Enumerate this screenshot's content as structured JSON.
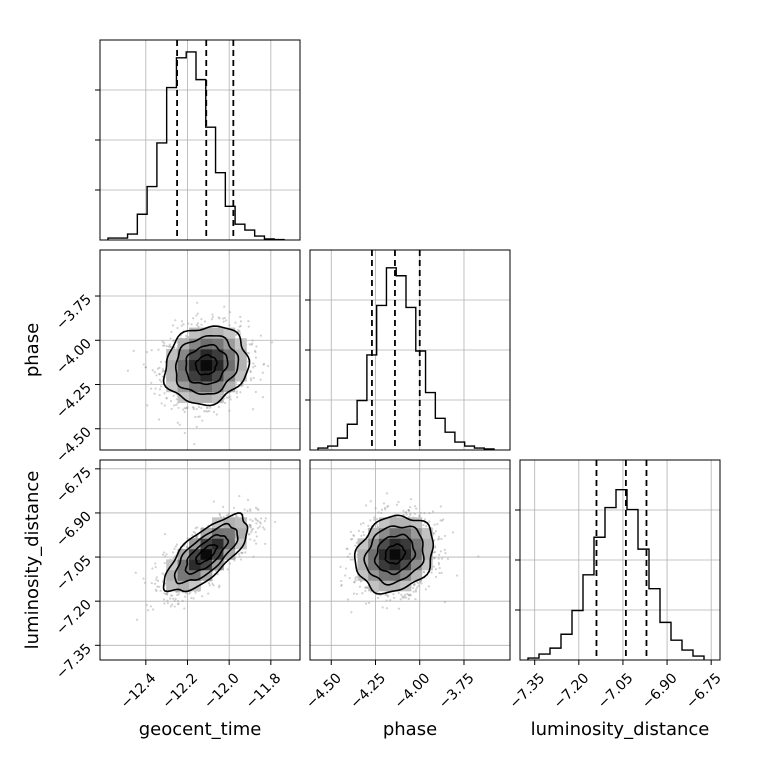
{
  "chart_data": {
    "type": "corner",
    "parameters": [
      "geocent_time",
      "phase",
      "luminosity_distance"
    ],
    "axis_labels": {
      "geocent_time": "geocent_time",
      "phase": "phase",
      "luminosity_distance": "luminosity_distance"
    },
    "ranges": {
      "geocent_time": [
        -12.62,
        -11.66
      ],
      "phase": [
        -4.62,
        -3.49
      ],
      "luminosity_distance": [
        -7.4,
        -6.72
      ]
    },
    "ticks": {
      "geocent_time": [
        {
          "value": -12.4,
          "label": "−12.4"
        },
        {
          "value": -12.2,
          "label": "−12.2"
        },
        {
          "value": -12.0,
          "label": "−12.0"
        },
        {
          "value": -11.8,
          "label": "−11.8"
        }
      ],
      "phase": [
        {
          "value": -4.5,
          "label": "−4.50"
        },
        {
          "value": -4.25,
          "label": "−4.25"
        },
        {
          "value": -4.0,
          "label": "−4.00"
        },
        {
          "value": -3.75,
          "label": "−3.75"
        }
      ],
      "luminosity_distance": [
        {
          "value": -7.35,
          "label": "−7.35"
        },
        {
          "value": -7.2,
          "label": "−7.20"
        },
        {
          "value": -7.05,
          "label": "−7.05"
        },
        {
          "value": -6.9,
          "label": "−6.90"
        },
        {
          "value": -6.75,
          "label": "−6.75"
        }
      ]
    },
    "quantiles": {
      "geocent_time": [
        -12.25,
        -12.11,
        -11.98
      ],
      "phase": [
        -4.27,
        -4.14,
        -4.0
      ],
      "luminosity_distance": [
        -7.14,
        -7.04,
        -6.97
      ]
    },
    "histograms": {
      "geocent_time": [
        0.01,
        0.01,
        0.03,
        0.13,
        0.27,
        0.49,
        0.77,
        0.92,
        0.95,
        0.81,
        0.57,
        0.34,
        0.17,
        0.08,
        0.05,
        0.02,
        0.005,
        0.002
      ],
      "phase": [
        0.01,
        0.02,
        0.06,
        0.13,
        0.25,
        0.48,
        0.73,
        0.92,
        0.88,
        0.72,
        0.5,
        0.29,
        0.16,
        0.09,
        0.04,
        0.02,
        0.01,
        0.005
      ],
      "luminosity_distance": [
        0.01,
        0.03,
        0.06,
        0.13,
        0.25,
        0.43,
        0.62,
        0.77,
        0.86,
        0.76,
        0.56,
        0.36,
        0.19,
        0.1,
        0.05,
        0.02
      ]
    },
    "histogram_ymax": {
      "geocent_time": 1.0,
      "phase": 1.0,
      "luminosity_distance": 1.0
    },
    "joint": [
      {
        "x": "geocent_time",
        "y": "phase",
        "mean": [
          -12.11,
          -4.14
        ],
        "sd": [
          0.1,
          0.11
        ],
        "corr": 0.12
      },
      {
        "x": "geocent_time",
        "y": "luminosity_distance",
        "mean": [
          -12.11,
          -7.04
        ],
        "sd": [
          0.1,
          0.065
        ],
        "corr": 0.72
      },
      {
        "x": "phase",
        "y": "luminosity_distance",
        "mean": [
          -4.14,
          -7.04
        ],
        "sd": [
          0.11,
          0.065
        ],
        "corr": 0.18
      }
    ],
    "contour_levels_sigma": [
      0.5,
      1.0,
      1.5,
      2.0
    ],
    "grid": true
  }
}
